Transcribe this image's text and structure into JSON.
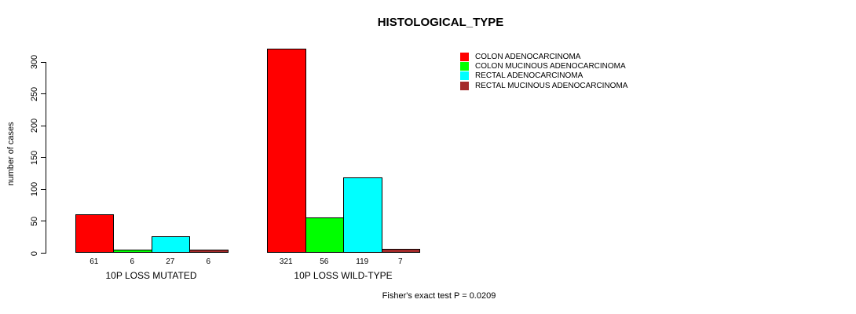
{
  "chart_data": {
    "type": "bar",
    "title": "HISTOLOGICAL_TYPE",
    "ylabel": "number of cases",
    "xlabel": "",
    "categories": [
      "10P LOSS MUTATED",
      "10P LOSS WILD-TYPE"
    ],
    "series": [
      {
        "name": "COLON ADENOCARCINOMA",
        "color": "#ff0000",
        "values": [
          61,
          321
        ]
      },
      {
        "name": "COLON MUCINOUS ADENOCARCINOMA",
        "color": "#00ff00",
        "values": [
          6,
          56
        ]
      },
      {
        "name": "RECTAL ADENOCARCINOMA",
        "color": "#00ffff",
        "values": [
          27,
          119
        ]
      },
      {
        "name": "RECTAL MUCINOUS ADENOCARCINOMA",
        "color": "#a52a2a",
        "values": [
          6,
          7
        ]
      }
    ],
    "yticks": [
      0,
      50,
      100,
      150,
      200,
      250,
      300
    ],
    "ylim": [
      0,
      300
    ],
    "bar_value_labels": [
      [
        "61",
        "6",
        "27",
        "6"
      ],
      [
        "321",
        "56",
        "119",
        "7"
      ]
    ],
    "annotation": "Fisher's exact test P = 0.0209",
    "legend_position": "top-right",
    "grid": false,
    "bar_border_color": "#000000"
  }
}
